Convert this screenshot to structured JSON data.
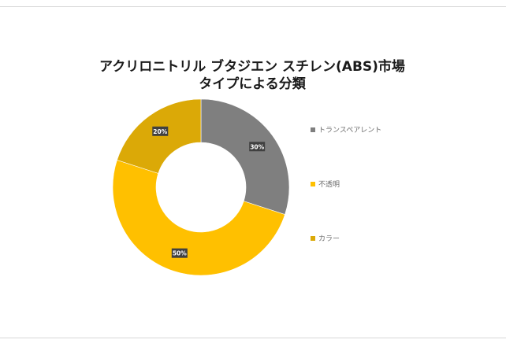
{
  "chart_data": {
    "type": "pie",
    "variant": "donut",
    "title_lines": [
      "アクリロニトリル ブタジエン スチレン(ABS)市場",
      "タイプによる分類"
    ],
    "categories": [
      "トランスペアレント",
      "不透明",
      "カラー"
    ],
    "values": [
      30,
      50,
      20
    ],
    "value_labels": [
      "30%",
      "50%",
      "20%"
    ],
    "colors": [
      "#7f7f7f",
      "#ffc000",
      "#dba907"
    ],
    "legend_position": "right"
  }
}
